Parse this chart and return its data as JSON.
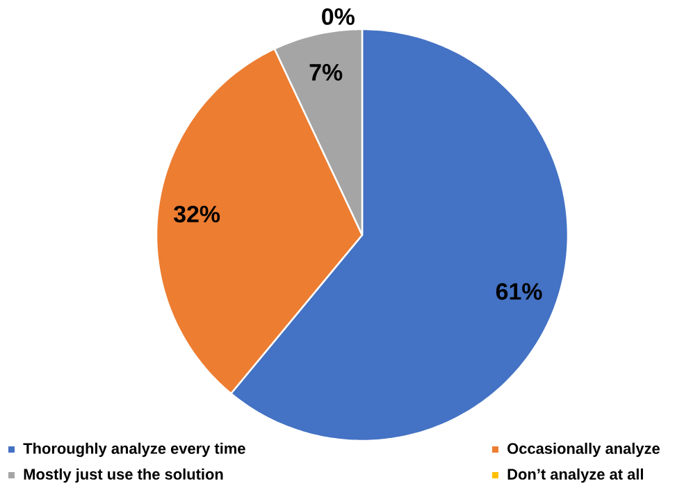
{
  "chart_data": {
    "type": "pie",
    "categories": [
      "Thoroughly analyze every time",
      "Occasionally analyze",
      "Mostly just use the solution",
      "Don’t analyze at all"
    ],
    "values": [
      61,
      32,
      7,
      0
    ],
    "colors": [
      "#4472c4",
      "#ed7d31",
      "#a5a5a5",
      "#ffc000"
    ],
    "value_labels": [
      "61%",
      "32%",
      "7%",
      "0%"
    ],
    "legend": "bottom"
  }
}
